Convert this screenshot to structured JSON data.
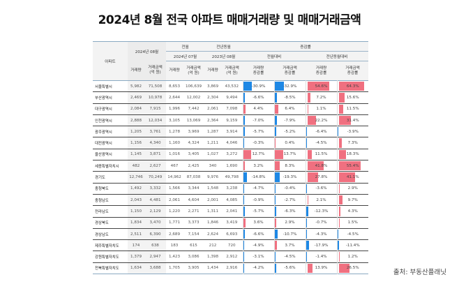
{
  "title": "2024년 8월 전국 아파트 매매거래량 및 매매거래금액",
  "source": "출처: 부동산플래닛",
  "colors": {
    "negative_bar": "#1e88e5",
    "positive_bar": "#f07080",
    "header_rule": "#8aa9c2"
  },
  "header": {
    "region_label": "아파트",
    "current_period": "2024년 08월",
    "prev_month_group": "전월",
    "prev_year_group": "전년동월",
    "change_group": "증감률",
    "prev_month_period": "2024년 07월",
    "prev_year_period": "2023년 08월",
    "mom_label": "전월대비",
    "yoy_label": "전년동월대비",
    "volume_label": "거래량",
    "amount_label": "거래금액\n(억 원)",
    "volume_change_label": "거래량\n증감률",
    "amount_change_label": "거래금액\n증감률"
  },
  "rows": [
    {
      "region": "서울특별시",
      "vol": "5,982",
      "amt": "71,508",
      "pm_vol": "8,653",
      "pm_amt": "106,639",
      "py_vol": "3,869",
      "py_amt": "43,532",
      "mom_vol": "-30.9%",
      "mom_amt": "-32.9%",
      "yoy_vol": "54.6%",
      "yoy_amt": "64.3%",
      "v": [
        -30.9,
        -32.9,
        54.6,
        64.3
      ]
    },
    {
      "region": "부산광역시",
      "vol": "2,469",
      "amt": "10,978",
      "pm_vol": "2,644",
      "pm_amt": "12,002",
      "py_vol": "2,304",
      "py_amt": "9,494",
      "mom_vol": "-6.6%",
      "mom_amt": "-8.5%",
      "yoy_vol": "7.2%",
      "yoy_amt": "15.6%",
      "v": [
        -6.6,
        -8.5,
        7.2,
        15.6
      ]
    },
    {
      "region": "대구광역시",
      "vol": "2,084",
      "amt": "7,915",
      "pm_vol": "1,996",
      "pm_amt": "7,442",
      "py_vol": "2,061",
      "py_amt": "7,098",
      "mom_vol": "4.4%",
      "mom_amt": "6.4%",
      "yoy_vol": "1.1%",
      "yoy_amt": "11.5%",
      "v": [
        4.4,
        6.4,
        1.1,
        11.5
      ]
    },
    {
      "region": "인천광역시",
      "vol": "2,888",
      "amt": "12,034",
      "pm_vol": "3,105",
      "pm_amt": "13,069",
      "py_vol": "2,364",
      "py_amt": "9,159",
      "mom_vol": "-7.0%",
      "mom_amt": "-7.9%",
      "yoy_vol": "22.2%",
      "yoy_amt": "31.4%",
      "v": [
        -7.0,
        -7.9,
        22.2,
        31.4
      ]
    },
    {
      "region": "광주광역시",
      "vol": "1,205",
      "amt": "3,761",
      "pm_vol": "1,278",
      "pm_amt": "3,969",
      "py_vol": "1,287",
      "py_amt": "3,914",
      "mom_vol": "-5.7%",
      "mom_amt": "-5.2%",
      "yoy_vol": "-6.4%",
      "yoy_amt": "-3.9%",
      "v": [
        -5.7,
        -5.2,
        -6.4,
        -3.9
      ]
    },
    {
      "region": "대전광역시",
      "vol": "1,156",
      "amt": "4,340",
      "pm_vol": "1,160",
      "pm_amt": "4,324",
      "py_vol": "1,211",
      "py_amt": "4,046",
      "mom_vol": "-0.3%",
      "mom_amt": "0.4%",
      "yoy_vol": "-4.5%",
      "yoy_amt": "7.3%",
      "v": [
        -0.3,
        0.4,
        -4.5,
        7.3
      ]
    },
    {
      "region": "울산광역시",
      "vol": "1,145",
      "amt": "3,871",
      "pm_vol": "1,016",
      "pm_amt": "3,405",
      "py_vol": "1,027",
      "py_amt": "3,272",
      "mom_vol": "12.7%",
      "mom_amt": "13.7%",
      "yoy_vol": "11.5%",
      "yoy_amt": "18.3%",
      "v": [
        12.7,
        13.7,
        11.5,
        18.3
      ]
    },
    {
      "region": "세종특별자치시",
      "vol": "482",
      "amt": "2,627",
      "pm_vol": "467",
      "pm_amt": "2,425",
      "py_vol": "340",
      "py_amt": "1,690",
      "mom_vol": "3.2%",
      "mom_amt": "8.3%",
      "yoy_vol": "41.8%",
      "yoy_amt": "55.4%",
      "v": [
        3.2,
        8.3,
        41.8,
        55.4
      ]
    },
    {
      "region": "경기도",
      "vol": "12,746",
      "amt": "70,249",
      "pm_vol": "14,962",
      "pm_amt": "87,038",
      "py_vol": "9,976",
      "py_amt": "49,798",
      "mom_vol": "-14.8%",
      "mom_amt": "-19.3%",
      "yoy_vol": "27.8%",
      "yoy_amt": "41.1%",
      "v": [
        -14.8,
        -19.3,
        27.8,
        41.1
      ]
    },
    {
      "region": "충청북도",
      "vol": "1,492",
      "amt": "3,332",
      "pm_vol": "1,566",
      "pm_amt": "3,344",
      "py_vol": "1,548",
      "py_amt": "3,238",
      "mom_vol": "-4.7%",
      "mom_amt": "-0.4%",
      "yoy_vol": "-3.6%",
      "yoy_amt": "2.9%",
      "v": [
        -4.7,
        -0.4,
        -3.6,
        2.9
      ]
    },
    {
      "region": "충청남도",
      "vol": "2,043",
      "amt": "4,481",
      "pm_vol": "2,061",
      "pm_amt": "4,604",
      "py_vol": "2,001",
      "py_amt": "4,085",
      "mom_vol": "-0.9%",
      "mom_amt": "-2.7%",
      "yoy_vol": "2.1%",
      "yoy_amt": "9.7%",
      "v": [
        -0.9,
        -2.7,
        2.1,
        9.7
      ]
    },
    {
      "region": "전라남도",
      "vol": "1,150",
      "amt": "2,129",
      "pm_vol": "1,220",
      "pm_amt": "2,271",
      "py_vol": "1,311",
      "py_amt": "2,041",
      "mom_vol": "-5.7%",
      "mom_amt": "-6.3%",
      "yoy_vol": "-12.3%",
      "yoy_amt": "4.3%",
      "v": [
        -5.7,
        -6.3,
        -12.3,
        4.3
      ]
    },
    {
      "region": "경상북도",
      "vol": "1,834",
      "amt": "3,470",
      "pm_vol": "1,771",
      "pm_amt": "3,373",
      "py_vol": "1,846",
      "py_amt": "3,419",
      "mom_vol": "3.6%",
      "mom_amt": "2.9%",
      "yoy_vol": "-0.7%",
      "yoy_amt": "1.5%",
      "v": [
        3.6,
        2.9,
        -0.7,
        1.5
      ]
    },
    {
      "region": "경상남도",
      "vol": "2,511",
      "amt": "6,390",
      "pm_vol": "2,689",
      "pm_amt": "7,154",
      "py_vol": "2,624",
      "py_amt": "6,693",
      "mom_vol": "-6.6%",
      "mom_amt": "-10.7%",
      "yoy_vol": "-4.3%",
      "yoy_amt": "-4.5%",
      "v": [
        -6.6,
        -10.7,
        -4.3,
        -4.5
      ]
    },
    {
      "region": "제주특별자치도",
      "vol": "174",
      "amt": "638",
      "pm_vol": "183",
      "pm_amt": "615",
      "py_vol": "212",
      "py_amt": "720",
      "mom_vol": "-4.9%",
      "mom_amt": "3.7%",
      "yoy_vol": "-17.9%",
      "yoy_amt": "-11.4%",
      "v": [
        -4.9,
        3.7,
        -17.9,
        -11.4
      ]
    },
    {
      "region": "강원특별자치도",
      "vol": "1,379",
      "amt": "2,947",
      "pm_vol": "1,423",
      "pm_amt": "3,086",
      "py_vol": "1,398",
      "py_amt": "2,912",
      "mom_vol": "-3.1%",
      "mom_amt": "-4.5%",
      "yoy_vol": "-1.4%",
      "yoy_amt": "1.2%",
      "v": [
        -3.1,
        -4.5,
        -1.4,
        1.2
      ]
    },
    {
      "region": "전북특별자치도",
      "vol": "1,634",
      "amt": "3,688",
      "pm_vol": "1,705",
      "pm_amt": "3,905",
      "py_vol": "1,434",
      "py_amt": "2,916",
      "mom_vol": "-4.2%",
      "mom_amt": "-5.6%",
      "yoy_vol": "13.9%",
      "yoy_amt": "26.5%",
      "v": [
        -4.2,
        -5.6,
        13.9,
        26.5
      ]
    }
  ]
}
